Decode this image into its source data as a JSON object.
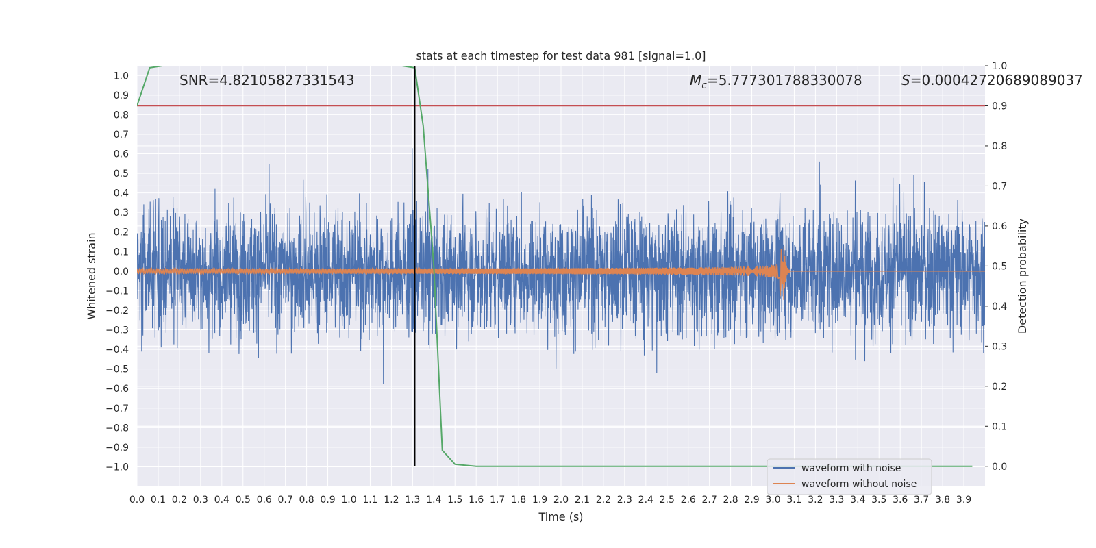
{
  "chart_data": {
    "type": "line",
    "title": "stats at each timestep for test data 981 [signal=1.0]",
    "xlabel": "Time (s)",
    "ylabel_left": "Whitened strain",
    "ylabel_right": "Detection probability",
    "xlim": [
      0.0,
      4.0
    ],
    "ylim_left": [
      -1.1,
      1.05
    ],
    "ylim_right": [
      -0.05,
      1.0
    ],
    "x_ticks": [
      "0.0",
      "0.1",
      "0.2",
      "0.3",
      "0.4",
      "0.5",
      "0.6",
      "0.7",
      "0.8",
      "0.9",
      "1.0",
      "1.1",
      "1.2",
      "1.3",
      "1.4",
      "1.5",
      "1.6",
      "1.7",
      "1.8",
      "1.9",
      "2.0",
      "2.1",
      "2.2",
      "2.3",
      "2.4",
      "2.5",
      "2.6",
      "2.7",
      "2.8",
      "2.9",
      "3.0",
      "3.1",
      "3.2",
      "3.3",
      "3.4",
      "3.5",
      "3.6",
      "3.7",
      "3.8",
      "3.9"
    ],
    "y_left_ticks": [
      "1.0",
      "0.9",
      "0.8",
      "0.7",
      "0.6",
      "0.5",
      "0.4",
      "0.3",
      "0.2",
      "0.1",
      "0.0",
      "-0.1",
      "-0.2",
      "-0.3",
      "-0.4",
      "-0.5",
      "-0.6",
      "-0.7",
      "-0.8",
      "-0.9",
      "-1.0"
    ],
    "y_right_ticks": [
      "1.0",
      "0.9",
      "0.8",
      "0.7",
      "0.6",
      "0.5",
      "0.4",
      "0.3",
      "0.2",
      "0.1",
      "0.0"
    ],
    "grid": true,
    "legend_position": "bottom-right",
    "annotations": {
      "snr": "SNR=4.82105827331543",
      "mc_prefix": "M",
      "mc_sub": "c",
      "mc_value": "=5.777301788330078",
      "s_prefix": "S",
      "s_value": "=0.00042720689089037"
    },
    "threshold_right": 0.9,
    "detection_time": 1.31,
    "series": [
      {
        "name": "waveform with noise",
        "axis": "left",
        "color": "#4c72b0",
        "description": "dense noisy strain, roughly within [-1.0, 0.95]",
        "envelope": 0.55
      },
      {
        "name": "waveform without noise",
        "axis": "left",
        "color": "#dd8452",
        "description": "chirp signal with growing amplitude, merger near 3.05 s",
        "merger_time": 3.05,
        "peak_amplitude": 0.13
      },
      {
        "name": "detection probability",
        "axis": "right",
        "color": "#55a868",
        "x": [
          0.0,
          0.06,
          0.12,
          0.5,
          1.0,
          1.25,
          1.31,
          1.35,
          1.4,
          1.44,
          1.5,
          1.6,
          2.0,
          3.0,
          3.94
        ],
        "y": [
          0.9,
          0.995,
          1.0,
          1.0,
          1.0,
          1.0,
          0.995,
          0.85,
          0.5,
          0.04,
          0.005,
          0.0,
          0.0,
          0.0,
          0.0
        ]
      }
    ],
    "legend": [
      {
        "label": "waveform with noise",
        "color": "#4c72b0"
      },
      {
        "label": "waveform without noise",
        "color": "#dd8452"
      }
    ],
    "colors": {
      "plot_bg": "#eaeaf2",
      "grid": "#ffffff",
      "threshold": "#c44e52",
      "marker": "#000000"
    }
  }
}
